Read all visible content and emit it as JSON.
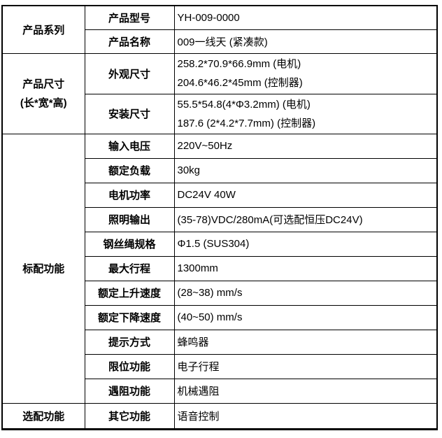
{
  "table": {
    "groups": [
      {
        "label": "产品系列"
      },
      {
        "label_line1": "产品尺寸",
        "label_line2": "(长*宽*高)"
      },
      {
        "label": "标配功能"
      },
      {
        "label": "选配功能"
      }
    ],
    "rows": [
      {
        "name": "产品型号",
        "value": "YH-009-0000"
      },
      {
        "name": "产品名称",
        "value": "009一线天 (紧凑款)"
      },
      {
        "name": "外观尺寸",
        "value_lines": [
          "258.2*70.9*66.9mm (电机)",
          "204.6*46.2*45mm (控制器)"
        ]
      },
      {
        "name": "安装尺寸",
        "value_lines": [
          "55.5*54.8(4*Φ3.2mm) (电机)",
          "187.6 (2*4.2*7.7mm) (控制器)"
        ]
      },
      {
        "name": "输入电压",
        "value": "220V~50Hz"
      },
      {
        "name": "额定负载",
        "value": "30kg"
      },
      {
        "name": "电机功率",
        "value": "DC24V 40W"
      },
      {
        "name": "照明输出",
        "value": "(35-78)VDC/280mA(可选配恒压DC24V)"
      },
      {
        "name": "钢丝绳规格",
        "value": "Φ1.5 (SUS304)"
      },
      {
        "name": "最大行程",
        "value": "1300mm"
      },
      {
        "name": "额定上升速度",
        "value": "(28~38) mm/s"
      },
      {
        "name": "额定下降速度",
        "value": "(40~50) mm/s"
      },
      {
        "name": "提示方式",
        "value": "蜂鸣器"
      },
      {
        "name": "限位功能",
        "value": "电子行程"
      },
      {
        "name": "遇阻功能",
        "value": "机械遇阻"
      },
      {
        "name": "其它功能",
        "value": "语音控制"
      }
    ]
  }
}
